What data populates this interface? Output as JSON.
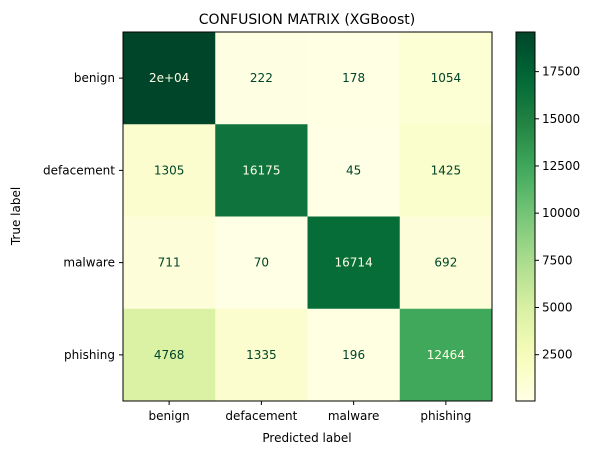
{
  "chart_data": {
    "type": "heatmap",
    "title": "CONFUSION MATRIX (XGBoost)",
    "xlabel": "Predicted label",
    "ylabel": "True label",
    "x_categories": [
      "benign",
      "defacement",
      "malware",
      "phishing"
    ],
    "y_categories": [
      "benign",
      "defacement",
      "malware",
      "phishing"
    ],
    "values": [
      [
        19600,
        222,
        178,
        1054
      ],
      [
        1305,
        16175,
        45,
        1425
      ],
      [
        711,
        70,
        16714,
        692
      ],
      [
        4768,
        1335,
        196,
        12464
      ]
    ],
    "cell_labels": [
      [
        "2e+04",
        "222",
        "178",
        "1054"
      ],
      [
        "1305",
        "16175",
        "45",
        "1425"
      ],
      [
        "711",
        "70",
        "16714",
        "692"
      ],
      [
        "4768",
        "1335",
        "196",
        "12464"
      ]
    ],
    "colormap": "Greens-like",
    "vmin": 45,
    "vmax": 19600,
    "colorbar_ticks": [
      2500,
      5000,
      7500,
      10000,
      12500,
      15000,
      17500
    ],
    "colors": {
      "low": "#ffffe5",
      "high": "#004529",
      "text_on_dark": "#ffffe5",
      "text_on_light": "#004529"
    }
  }
}
